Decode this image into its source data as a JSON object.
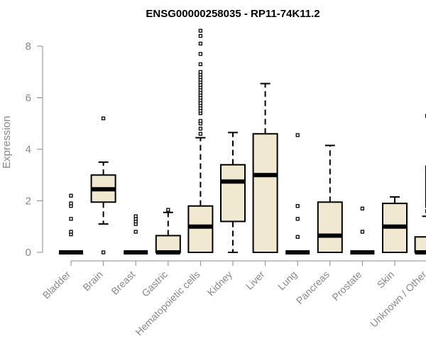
{
  "chart_data": {
    "type": "boxplot",
    "title": "ENSG00000258035 - RP11-74K11.2",
    "xlabel": "",
    "ylabel": "Expression",
    "ylim": [
      0,
      8.6
    ],
    "yticks": [
      0,
      2,
      4,
      6,
      8
    ],
    "grid": false,
    "box_fill": "#f0e9d0",
    "categories": [
      "Bladder",
      "Brain",
      "Breast",
      "Gastric",
      "Hematopoietic cells",
      "Kidney",
      "Liver",
      "Lung",
      "Pancreas",
      "Prostate",
      "Skin",
      "Unknown / Other"
    ],
    "boxes": [
      {
        "min": 0,
        "q1": 0,
        "median": 0,
        "q3": 0,
        "max": 0,
        "outliers": [
          0.7,
          0.8,
          1.3,
          1.8,
          1.9,
          2.2
        ]
      },
      {
        "min": 1.1,
        "q1": 1.95,
        "median": 2.45,
        "q3": 3.0,
        "max": 3.5,
        "outliers": [
          0,
          5.2
        ]
      },
      {
        "min": 0,
        "q1": 0,
        "median": 0,
        "q3": 0,
        "max": 0,
        "outliers": [
          0.8,
          1.1,
          1.2,
          1.3,
          1.4
        ]
      },
      {
        "min": 0,
        "q1": 0,
        "median": 0,
        "q3": 0.65,
        "max": 1.55,
        "outliers": [
          1.65
        ]
      },
      {
        "min": 0,
        "q1": 0,
        "median": 1.0,
        "q3": 1.8,
        "max": 4.45,
        "outliers": [
          4.6,
          4.8,
          5.0,
          5.1,
          5.4,
          5.5,
          5.6,
          5.7,
          5.8,
          5.9,
          6.0,
          6.1,
          6.2,
          6.3,
          6.4,
          6.5,
          6.6,
          6.7,
          6.8,
          6.9,
          7.0,
          7.3,
          7.7,
          8.1,
          8.4,
          8.6
        ]
      },
      {
        "min": 0,
        "q1": 1.2,
        "median": 2.75,
        "q3": 3.4,
        "max": 4.65,
        "outliers": []
      },
      {
        "min": 0,
        "q1": 0,
        "median": 3.0,
        "q3": 4.6,
        "max": 6.55,
        "outliers": []
      },
      {
        "min": 0,
        "q1": 0,
        "median": 0,
        "q3": 0,
        "max": 0,
        "outliers": [
          0.6,
          1.3,
          1.8,
          4.55
        ]
      },
      {
        "min": 0,
        "q1": 0,
        "median": 0.65,
        "q3": 1.95,
        "max": 4.15,
        "outliers": []
      },
      {
        "min": 0,
        "q1": 0,
        "median": 0,
        "q3": 0,
        "max": 0,
        "outliers": [
          0.8,
          1.7
        ]
      },
      {
        "min": 0,
        "q1": 0,
        "median": 1.0,
        "q3": 1.9,
        "max": 2.15,
        "outliers": []
      },
      {
        "min": 0,
        "q1": 0,
        "median": 0,
        "q3": 0.6,
        "max": 1.4,
        "outliers": [
          1.6,
          1.8,
          1.9,
          2.0,
          2.1,
          2.2,
          2.3,
          2.4,
          2.5,
          2.6,
          2.7,
          2.8,
          2.9,
          3.0,
          3.1,
          3.2,
          3.3,
          5.3
        ]
      }
    ]
  }
}
